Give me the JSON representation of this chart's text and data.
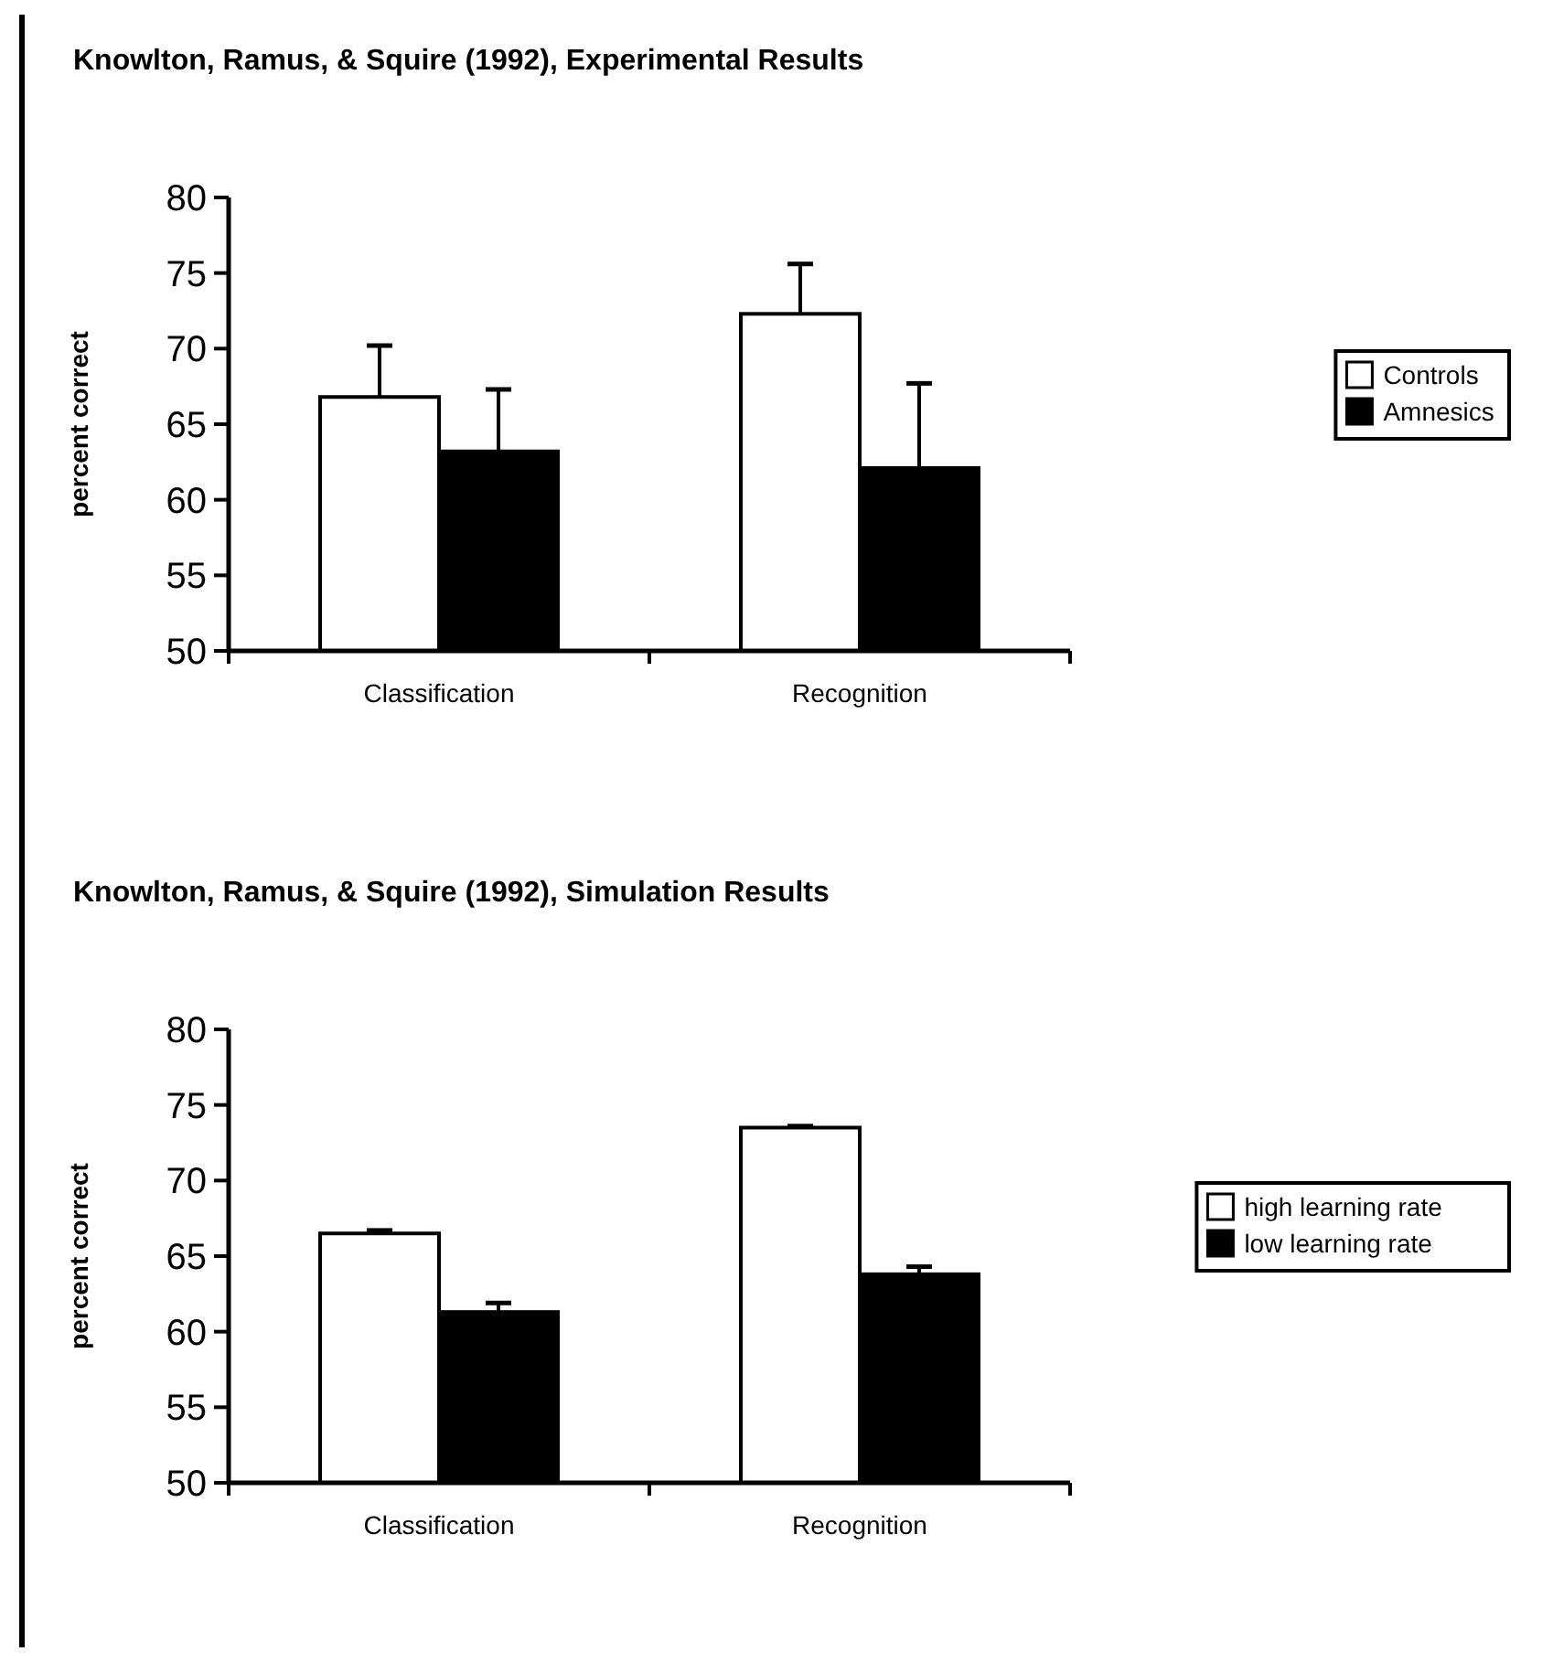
{
  "chart_data": [
    {
      "type": "bar",
      "title": "Knowlton, Ramus, & Squire (1992), Experimental Results",
      "ylabel": "percent correct",
      "categories": [
        "Classification",
        "Recognition"
      ],
      "ylim": [
        50,
        80
      ],
      "yticks": [
        50,
        55,
        60,
        65,
        70,
        75,
        80
      ],
      "legend": "right",
      "series": [
        {
          "name": "Controls",
          "color": "#ffffff",
          "values": [
            66.8,
            72.3
          ],
          "errors": [
            [
              66.8,
              70.2
            ],
            [
              72.3,
              75.6
            ]
          ]
        },
        {
          "name": "Amnesics",
          "color": "#000000",
          "values": [
            63.2,
            62.1
          ],
          "errors": [
            [
              63.2,
              67.3
            ],
            [
              62.1,
              67.7
            ]
          ]
        }
      ]
    },
    {
      "type": "bar",
      "title": "Knowlton, Ramus, & Squire (1992), Simulation Results",
      "ylabel": "percent correct",
      "categories": [
        "Classification",
        "Recognition"
      ],
      "ylim": [
        50,
        80
      ],
      "yticks": [
        50,
        55,
        60,
        65,
        70,
        75,
        80
      ],
      "legend": "right",
      "series": [
        {
          "name": "high learning rate",
          "color": "#ffffff",
          "values": [
            66.5,
            73.5
          ],
          "errors": [
            [
              66.5,
              66.7
            ],
            [
              73.5,
              73.6
            ]
          ]
        },
        {
          "name": "low learning rate",
          "color": "#000000",
          "values": [
            61.3,
            63.8
          ],
          "errors": [
            [
              61.3,
              61.9
            ],
            [
              63.8,
              64.3
            ]
          ]
        }
      ]
    }
  ]
}
